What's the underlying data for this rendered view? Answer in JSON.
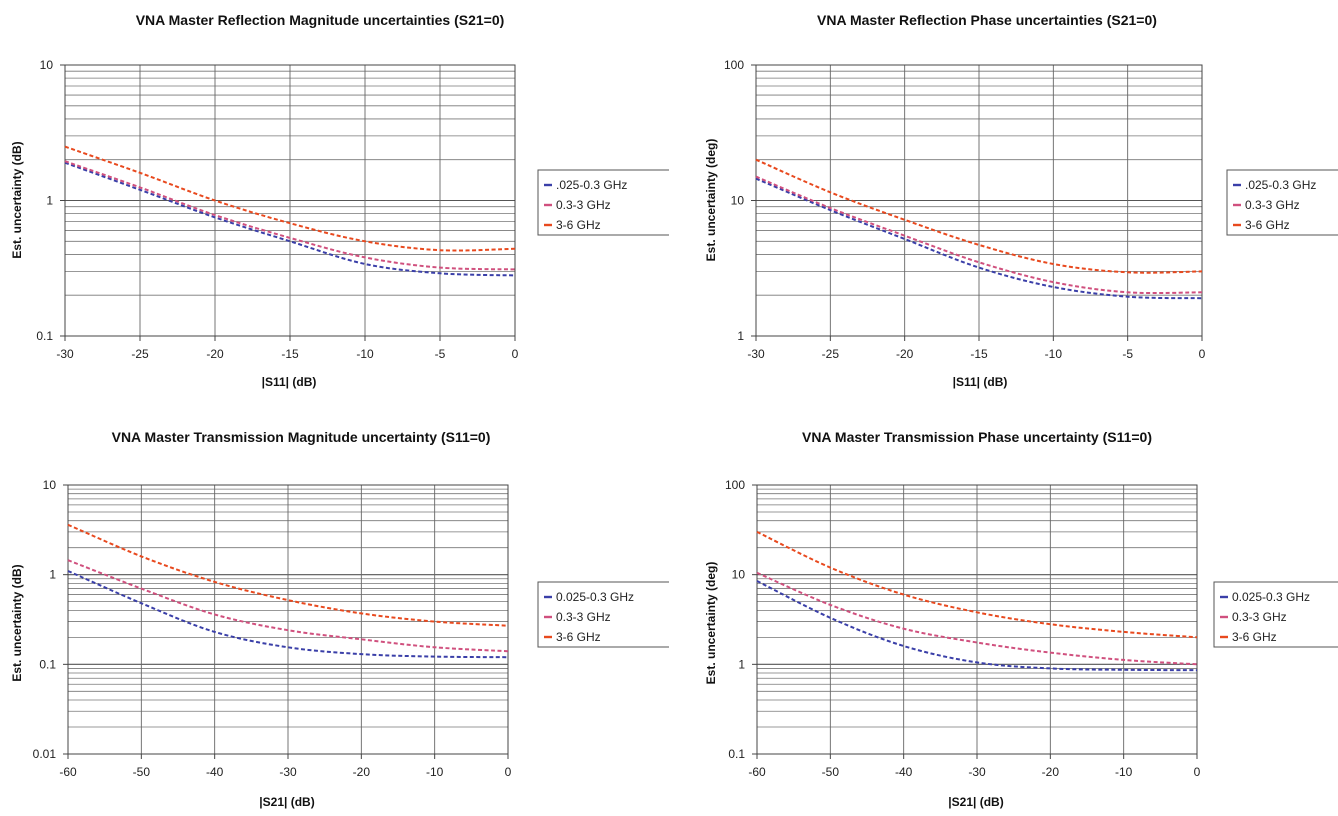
{
  "chart_data": [
    {
      "type": "line",
      "title": "VNA Master Reflection Magnitude uncertainties (S21=0)",
      "xlabel": "|S11| (dB)",
      "ylabel": "Est. uncertainty (dB)",
      "y_scale": "log",
      "grid": true,
      "legend_position": "right",
      "xlim": [
        -30,
        0
      ],
      "ylim": [
        0.1,
        10
      ],
      "x_ticks": [
        "-30",
        "-25",
        "-20",
        "-15",
        "-10",
        "-5",
        "0"
      ],
      "y_ticks": [
        "0.1",
        "1",
        "10"
      ],
      "x": [
        -30,
        -25,
        -20,
        -15,
        -10,
        -5,
        0
      ],
      "series": [
        {
          "name": ".025-0.3 GHz",
          "color": "#3a3fa8",
          "values": [
            1.9,
            1.2,
            0.75,
            0.5,
            0.34,
            0.29,
            0.28
          ]
        },
        {
          "name": "0.3-3 GHz",
          "color": "#d0507e",
          "values": [
            1.95,
            1.25,
            0.78,
            0.53,
            0.38,
            0.32,
            0.31
          ]
        },
        {
          "name": "3-6 GHz",
          "color": "#e8491e",
          "values": [
            2.5,
            1.6,
            1.0,
            0.68,
            0.5,
            0.43,
            0.44
          ]
        }
      ]
    },
    {
      "type": "line",
      "title": "VNA Master Reflection Phase uncertainties (S21=0)",
      "xlabel": "|S11| (dB)",
      "ylabel": "Est. uncertainty (deg)",
      "y_scale": "log",
      "grid": true,
      "legend_position": "right",
      "xlim": [
        -30,
        0
      ],
      "ylim": [
        1,
        100
      ],
      "x_ticks": [
        "-30",
        "-25",
        "-20",
        "-15",
        "-10",
        "-5",
        "0"
      ],
      "y_ticks": [
        "1",
        "10",
        "100"
      ],
      "x": [
        -30,
        -25,
        -20,
        -15,
        -10,
        -5,
        0
      ],
      "series": [
        {
          "name": ".025-0.3 GHz",
          "color": "#3a3fa8",
          "values": [
            14.5,
            8.5,
            5.2,
            3.2,
            2.3,
            1.95,
            1.9
          ]
        },
        {
          "name": "0.3-3 GHz",
          "color": "#d0507e",
          "values": [
            15,
            8.8,
            5.5,
            3.5,
            2.5,
            2.1,
            2.1
          ]
        },
        {
          "name": "3-6 GHz",
          "color": "#e8491e",
          "values": [
            20,
            11.5,
            7.2,
            4.7,
            3.4,
            2.95,
            3.0
          ]
        }
      ]
    },
    {
      "type": "line",
      "title": "VNA Master Transmission Magnitude uncertainty (S11=0)",
      "xlabel": "|S21| (dB)",
      "ylabel": "Est. uncertainty (dB)",
      "y_scale": "log",
      "grid": true,
      "legend_position": "right",
      "xlim": [
        -60,
        0
      ],
      "ylim": [
        0.01,
        10
      ],
      "x_ticks": [
        "-60",
        "-50",
        "-40",
        "-30",
        "-20",
        "-10",
        "0"
      ],
      "y_ticks": [
        "0.01",
        "0.1",
        "1",
        "10"
      ],
      "x": [
        -60,
        -50,
        -40,
        -30,
        -20,
        -10,
        0
      ],
      "series": [
        {
          "name": "0.025-0.3 GHz",
          "color": "#3a3fa8",
          "values": [
            1.1,
            0.48,
            0.23,
            0.155,
            0.13,
            0.122,
            0.12
          ]
        },
        {
          "name": "0.3-3 GHz",
          "color": "#d0507e",
          "values": [
            1.45,
            0.7,
            0.36,
            0.24,
            0.19,
            0.155,
            0.14
          ]
        },
        {
          "name": "3-6 GHz",
          "color": "#e8491e",
          "values": [
            3.6,
            1.6,
            0.83,
            0.52,
            0.37,
            0.3,
            0.27
          ]
        }
      ]
    },
    {
      "type": "line",
      "title": "VNA Master Transmission Phase uncertainty (S11=0)",
      "xlabel": "|S21| (dB)",
      "ylabel": "Est. uncertainty (deg)",
      "y_scale": "log",
      "grid": true,
      "legend_position": "right",
      "xlim": [
        -60,
        0
      ],
      "ylim": [
        0.1,
        100
      ],
      "x_ticks": [
        "-60",
        "-50",
        "-40",
        "-30",
        "-20",
        "-10",
        "0"
      ],
      "y_ticks": [
        "0.1",
        "1",
        "10",
        "100"
      ],
      "x": [
        -60,
        -50,
        -40,
        -30,
        -20,
        -10,
        0
      ],
      "series": [
        {
          "name": "0.025-0.3 GHz",
          "color": "#3a3fa8",
          "values": [
            8.5,
            3.3,
            1.6,
            1.05,
            0.9,
            0.87,
            0.86
          ]
        },
        {
          "name": "0.3-3 GHz",
          "color": "#d0507e",
          "values": [
            10.5,
            4.6,
            2.5,
            1.75,
            1.35,
            1.12,
            1.0
          ]
        },
        {
          "name": "3-6 GHz",
          "color": "#e8491e",
          "values": [
            30,
            12,
            6.0,
            3.8,
            2.8,
            2.3,
            2.0
          ]
        }
      ]
    }
  ]
}
